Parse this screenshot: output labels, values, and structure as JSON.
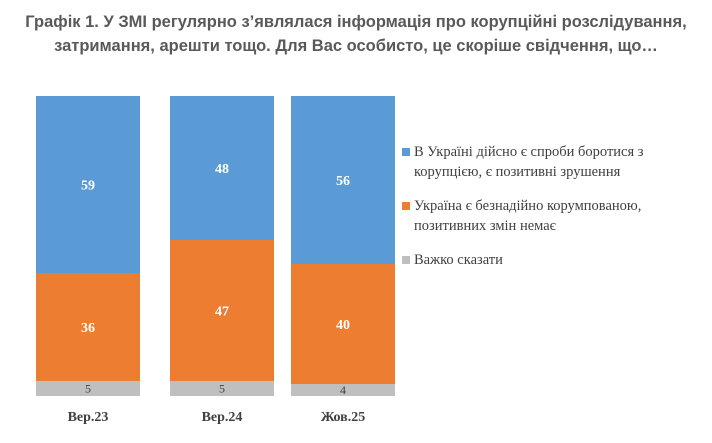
{
  "title_lines": [
    "Графік 1. У ЗМІ регулярно з’являлася інформація про корупційні розслідування,",
    "затримання, арешти тощо. Для Вас особисто, це скоріше свідчення, що…"
  ],
  "legend": [
    {
      "lines": [
        "В Україні дійсно є спроби боротися з",
        "корупцією, є позитивні зрушення"
      ],
      "color": "#5b9bd5"
    },
    {
      "lines": [
        "Україна є безнадійно корумпованою,",
        "позитивних змін немає"
      ],
      "color": "#ed7d31"
    },
    {
      "lines": [
        "Важко сказати"
      ],
      "color": "#bfbfbf"
    }
  ],
  "chart_data": {
    "type": "bar",
    "stacked": true,
    "categories": [
      "Вер.23",
      "Вер.24",
      "Жов.25"
    ],
    "series": [
      {
        "name": "Важко сказати",
        "values": [
          5,
          5,
          4
        ],
        "color": "#bfbfbf"
      },
      {
        "name": "Україна є безнадійно корумпованою, позитивних змін немає",
        "values": [
          36,
          47,
          40
        ],
        "color": "#ed7d31"
      },
      {
        "name": "В Україні дійсно є спроби боротися з корупцією, є позитивні зрушення",
        "values": [
          59,
          48,
          56
        ],
        "color": "#5b9bd5"
      }
    ],
    "ylim": [
      0,
      100
    ],
    "grid": false,
    "legend_position": "right"
  }
}
